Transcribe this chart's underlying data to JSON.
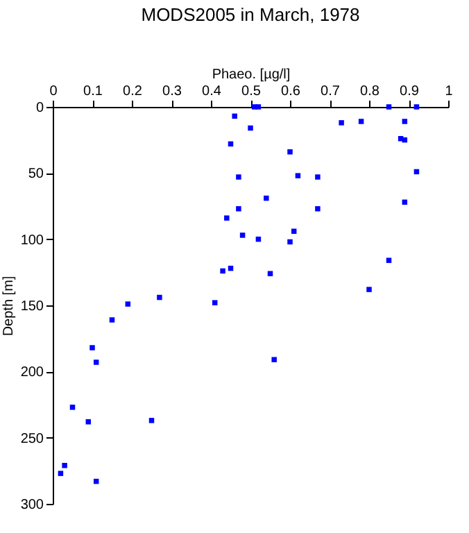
{
  "chart_data": {
    "type": "scatter",
    "title": "MODS2005 in March, 1978",
    "xlabel": "Phaeo. [µg/l]",
    "ylabel": "Depth [m]",
    "x": [
      0.51,
      0.52,
      0.85,
      0.92,
      0.46,
      0.73,
      0.78,
      0.89,
      0.5,
      0.45,
      0.88,
      0.89,
      0.6,
      0.92,
      0.47,
      0.62,
      0.67,
      0.54,
      0.89,
      0.47,
      0.67,
      0.44,
      0.61,
      0.48,
      0.52,
      0.6,
      0.43,
      0.45,
      0.55,
      0.85,
      0.8,
      0.27,
      0.41,
      0.19,
      0.15,
      0.1,
      0.11,
      0.56,
      0.05,
      0.09,
      0.25,
      0.03,
      0.02,
      0.11
    ],
    "series": [
      {
        "color": "#0000ff",
        "values": [
          0,
          0,
          0,
          0,
          7,
          12,
          11,
          11,
          16,
          28,
          24,
          25,
          34,
          49,
          53,
          52,
          53,
          69,
          72,
          77,
          77,
          84,
          94,
          97,
          100,
          102,
          124,
          122,
          126,
          116,
          138,
          144,
          148,
          149,
          161,
          182,
          193,
          191,
          227,
          238,
          237,
          271,
          277,
          283
        ]
      }
    ],
    "xlim": [
      0,
      1
    ],
    "xticks": [
      0,
      0.1,
      0.2,
      0.3,
      0.4,
      0.5,
      0.6,
      0.7,
      0.8,
      0.9,
      1
    ],
    "ylim": [
      300,
      0
    ],
    "yticks": [
      0,
      50,
      100,
      150,
      200,
      250,
      300
    ],
    "grid": false,
    "marker": "square"
  }
}
